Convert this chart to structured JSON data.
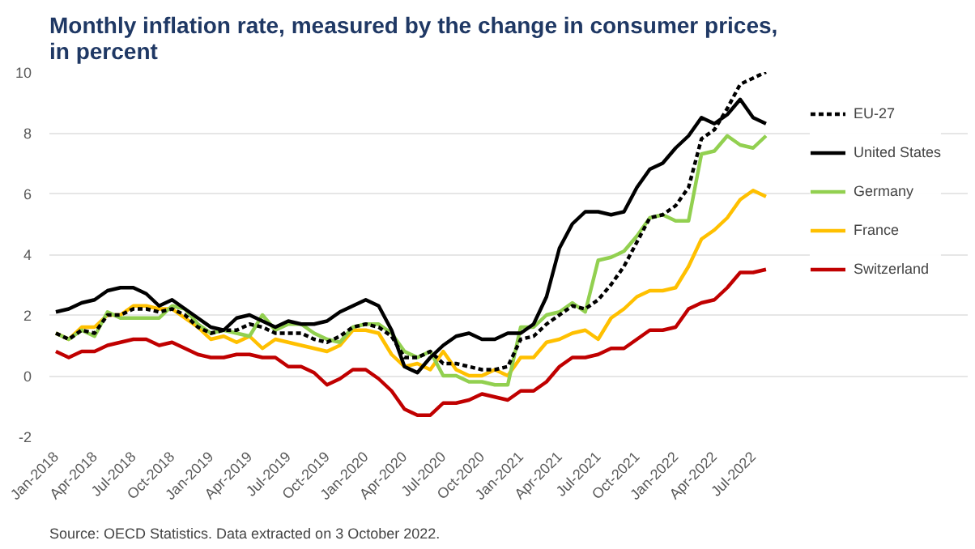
{
  "chart_data": {
    "type": "line",
    "title": "Monthly inflation rate, measured by the change in consumer prices,\nin percent",
    "annotations": [
      "Source: OECD Statistics. Data extracted on 3 October 2022."
    ],
    "categories": [
      "Jan-2018",
      null,
      null,
      "Apr-2018",
      null,
      null,
      "Jul-2018",
      null,
      null,
      "Oct-2018",
      null,
      null,
      "Jan-2019",
      null,
      null,
      "Apr-2019",
      null,
      null,
      "Jul-2019",
      null,
      null,
      "Oct-2019",
      null,
      null,
      "Jan-2020",
      null,
      null,
      "Apr-2020",
      null,
      null,
      "Jul-2020",
      null,
      null,
      "Oct-2020",
      null,
      null,
      "Jan-2021",
      null,
      null,
      "Apr-2021",
      null,
      null,
      "Jul-2021",
      null,
      null,
      "Oct-2021",
      null,
      null,
      "Jan-2022",
      null,
      null,
      "Apr-2022",
      null,
      null,
      "Jul-2022",
      null
    ],
    "series": [
      {
        "name": "EU-27",
        "color": "#000000",
        "line_style": "dotted",
        "values": [
          1.4,
          1.2,
          1.5,
          1.4,
          2.0,
          2.0,
          2.2,
          2.2,
          2.1,
          2.2,
          2.0,
          1.6,
          1.4,
          1.5,
          1.5,
          1.7,
          1.6,
          1.4,
          1.4,
          1.4,
          1.2,
          1.1,
          1.3,
          1.6,
          1.7,
          1.6,
          1.3,
          0.6,
          0.6,
          0.8,
          0.4,
          0.4,
          0.3,
          0.2,
          0.2,
          0.3,
          1.2,
          1.3,
          1.7,
          2.0,
          2.3,
          2.2,
          2.5,
          3.0,
          3.6,
          4.4,
          5.2,
          5.3,
          5.6,
          6.2,
          7.8,
          8.1,
          8.8,
          9.6,
          9.8,
          10.0
        ]
      },
      {
        "name": "United States",
        "color": "#000000",
        "line_style": "solid",
        "values": [
          2.1,
          2.2,
          2.4,
          2.5,
          2.8,
          2.9,
          2.9,
          2.7,
          2.3,
          2.5,
          2.2,
          1.9,
          1.6,
          1.5,
          1.9,
          2.0,
          1.8,
          1.6,
          1.8,
          1.7,
          1.7,
          1.8,
          2.1,
          2.3,
          2.5,
          2.3,
          1.5,
          0.3,
          0.1,
          0.6,
          1.0,
          1.3,
          1.4,
          1.2,
          1.2,
          1.4,
          1.4,
          1.7,
          2.6,
          4.2,
          5.0,
          5.4,
          5.4,
          5.3,
          5.4,
          6.2,
          6.8,
          7.0,
          7.5,
          7.9,
          8.5,
          8.3,
          8.6,
          9.1,
          8.5,
          8.3
        ]
      },
      {
        "name": "Germany",
        "color": "#92d050",
        "line_style": "solid",
        "values": [
          1.4,
          1.2,
          1.5,
          1.3,
          2.1,
          1.9,
          1.9,
          1.9,
          1.9,
          2.3,
          2.2,
          1.7,
          1.4,
          1.5,
          1.4,
          1.3,
          2.0,
          1.5,
          1.7,
          1.7,
          1.4,
          1.2,
          1.1,
          1.6,
          1.7,
          1.7,
          1.4,
          0.8,
          0.6,
          0.8,
          0.0,
          0.0,
          -0.2,
          -0.2,
          -0.3,
          -0.3,
          1.6,
          1.6,
          2.0,
          2.1,
          2.4,
          2.1,
          3.8,
          3.9,
          4.1,
          4.6,
          5.2,
          5.3,
          5.1,
          5.1,
          7.3,
          7.4,
          7.9,
          7.6,
          7.5,
          7.9
        ]
      },
      {
        "name": "France",
        "color": "#ffc000",
        "line_style": "solid",
        "values": [
          1.4,
          1.2,
          1.6,
          1.6,
          2.0,
          2.0,
          2.3,
          2.3,
          2.2,
          2.2,
          1.9,
          1.6,
          1.2,
          1.3,
          1.1,
          1.3,
          0.9,
          1.2,
          1.1,
          1.0,
          0.9,
          0.8,
          1.0,
          1.5,
          1.5,
          1.4,
          0.7,
          0.3,
          0.4,
          0.2,
          0.8,
          0.2,
          0.0,
          0.0,
          0.2,
          0.0,
          0.6,
          0.6,
          1.1,
          1.2,
          1.4,
          1.5,
          1.2,
          1.9,
          2.2,
          2.6,
          2.8,
          2.8,
          2.9,
          3.6,
          4.5,
          4.8,
          5.2,
          5.8,
          6.1,
          5.9
        ]
      },
      {
        "name": "Switzerland",
        "color": "#c00000",
        "line_style": "solid",
        "values": [
          0.8,
          0.6,
          0.8,
          0.8,
          1.0,
          1.1,
          1.2,
          1.2,
          1.0,
          1.1,
          0.9,
          0.7,
          0.6,
          0.6,
          0.7,
          0.7,
          0.6,
          0.6,
          0.3,
          0.3,
          0.1,
          -0.3,
          -0.1,
          0.2,
          0.2,
          -0.1,
          -0.5,
          -1.1,
          -1.3,
          -1.3,
          -0.9,
          -0.9,
          -0.8,
          -0.6,
          -0.7,
          -0.8,
          -0.5,
          -0.5,
          -0.2,
          0.3,
          0.6,
          0.6,
          0.7,
          0.9,
          0.9,
          1.2,
          1.5,
          1.5,
          1.6,
          2.2,
          2.4,
          2.5,
          2.9,
          3.4,
          3.4,
          3.5
        ]
      }
    ],
    "ylim": [
      -2,
      10
    ],
    "yticks": [
      -2,
      0,
      2,
      4,
      6,
      8,
      10
    ],
    "grid": "y",
    "legend": "right"
  }
}
